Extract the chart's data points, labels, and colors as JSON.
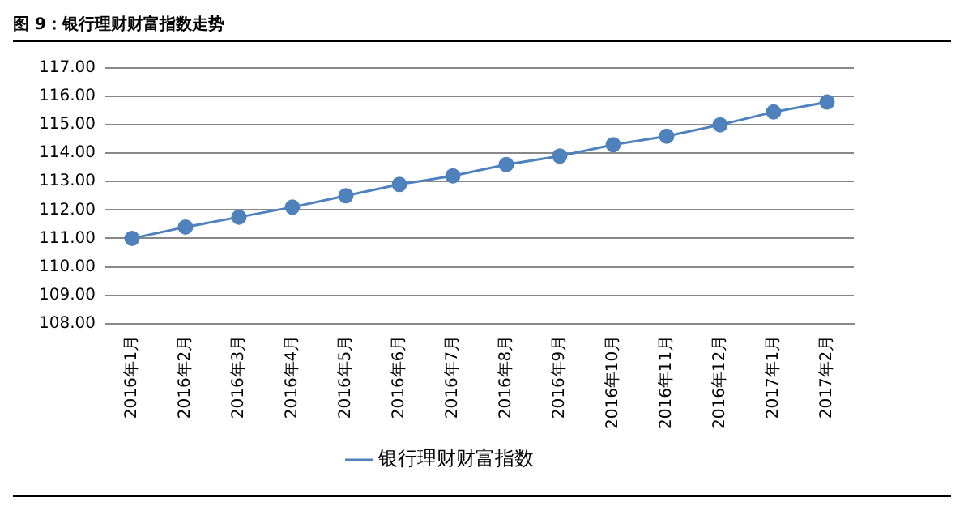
{
  "chart_data": {
    "type": "line",
    "title": "图 9：银行理财财富指数走势",
    "categories": [
      "2016年1月",
      "2016年2月",
      "2016年3月",
      "2016年4月",
      "2016年5月",
      "2016年6月",
      "2016年7月",
      "2016年8月",
      "2016年9月",
      "2016年10月",
      "2016年11月",
      "2016年12月",
      "2017年1月",
      "2017年2月"
    ],
    "series": [
      {
        "name": "银行理财财富指数",
        "color": "#4f81bd",
        "values": [
          111.0,
          111.4,
          111.75,
          112.1,
          112.5,
          112.9,
          113.2,
          113.6,
          113.9,
          114.3,
          114.6,
          115.0,
          115.45,
          115.8
        ]
      }
    ],
    "ylim": [
      108,
      117
    ],
    "yticks": [
      {
        "value": 108,
        "label": "108.00"
      },
      {
        "value": 109,
        "label": "109.00"
      },
      {
        "value": 110,
        "label": "110.00"
      },
      {
        "value": 111,
        "label": "111.00"
      },
      {
        "value": 112,
        "label": "112.00"
      },
      {
        "value": 113,
        "label": "113.00"
      },
      {
        "value": 114,
        "label": "114.00"
      },
      {
        "value": 115,
        "label": "115.00"
      },
      {
        "value": 116,
        "label": "116.00"
      },
      {
        "value": 117,
        "label": "117.00"
      }
    ],
    "grid": "y",
    "legend": "bottom",
    "marker": "circle",
    "line_style": "solid"
  }
}
